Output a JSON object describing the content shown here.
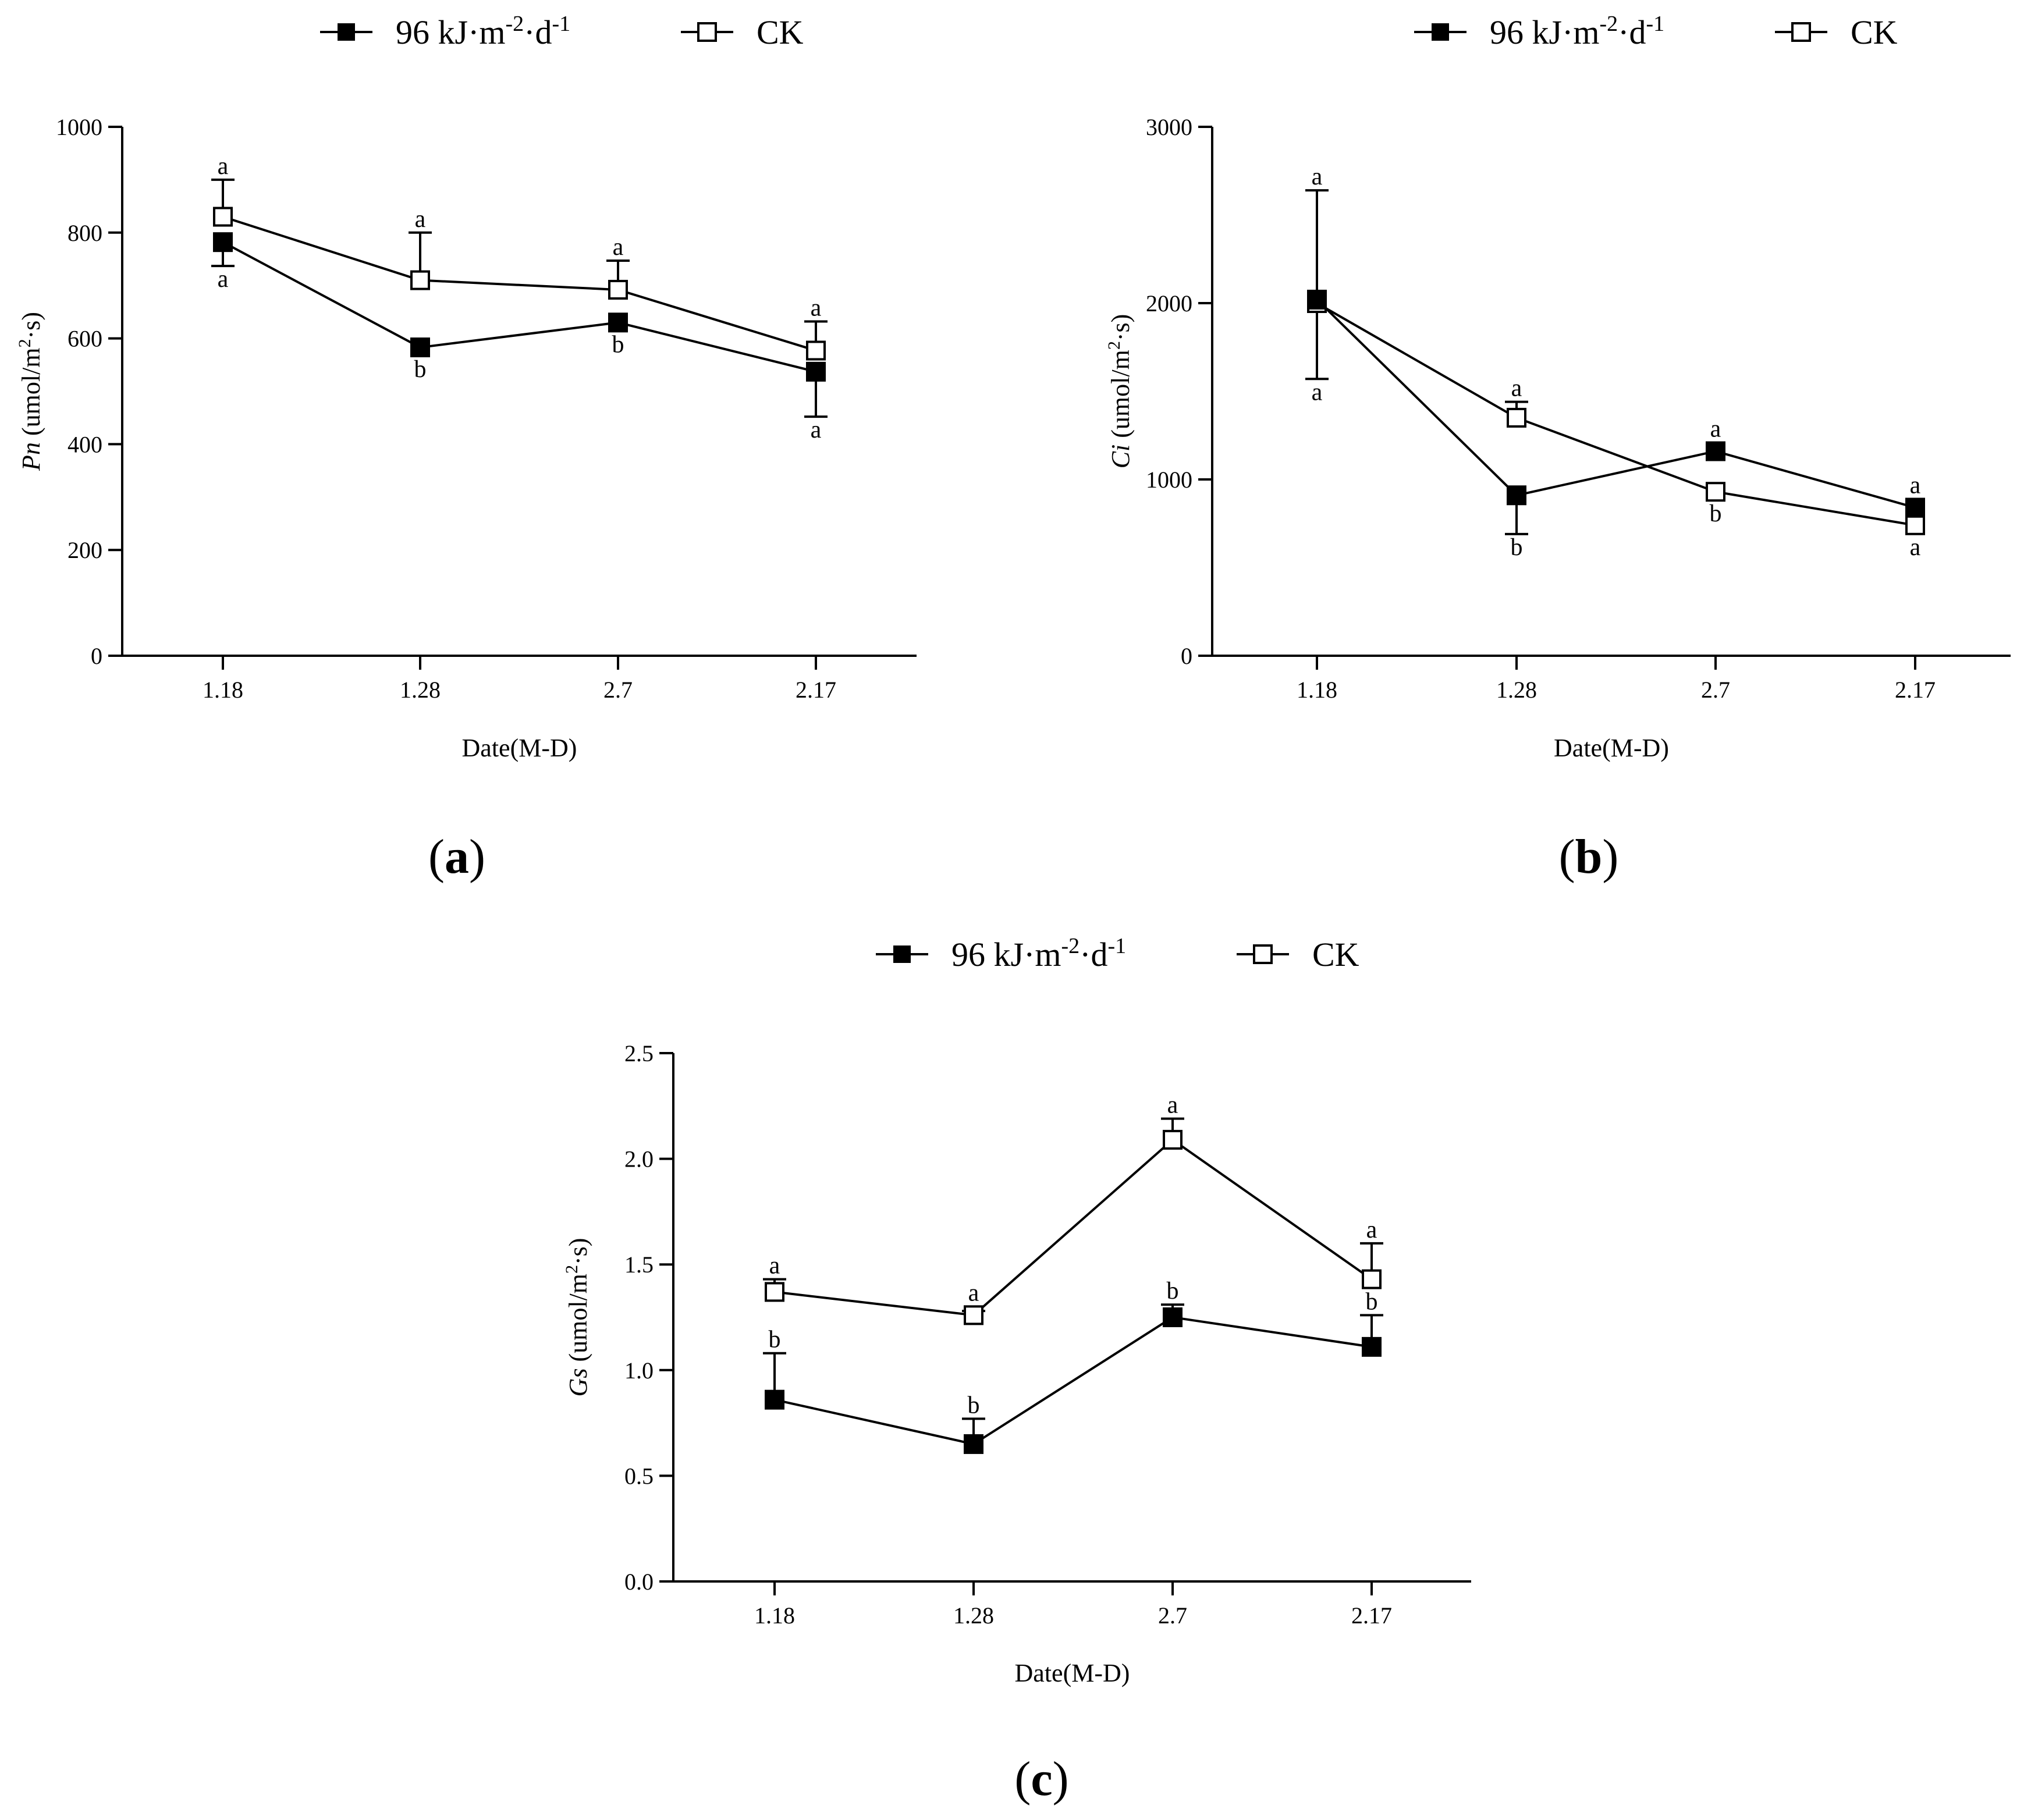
{
  "legend": {
    "treatment": {
      "base": "96 kJ·m",
      "exp1": "-2",
      "mid": "·d",
      "exp2": "-1"
    },
    "control": "CK"
  },
  "chart_data": [
    {
      "type": "line",
      "panel_label": "(a)",
      "panel_letter": "a",
      "categories": [
        "1.18",
        "1.28",
        "2.7",
        "2.17"
      ],
      "xlabel": "Date(M-D)",
      "ylabel": {
        "var": "Pn",
        "unit_open": " (umol/m",
        "unit_exp": "2",
        "unit_close": "·s)"
      },
      "ylim": [
        0,
        1000
      ],
      "yticks": [
        0,
        200,
        400,
        600,
        800,
        1000
      ],
      "ytick_labels": [
        "0",
        "200",
        "400",
        "600",
        "800",
        "1000"
      ],
      "series": [
        {
          "name": "96 kJ·m-2·d-1",
          "marker": "filled-square",
          "values": [
            782,
            583,
            630,
            537
          ],
          "errors": [
            45,
            0,
            0,
            85
          ],
          "error_dir": [
            "down",
            "none",
            "none",
            "down"
          ],
          "letters": [
            "a",
            "b",
            "b",
            "a"
          ],
          "letter_pos": [
            "below",
            "below",
            "below",
            "below"
          ]
        },
        {
          "name": "CK",
          "marker": "open-square",
          "values": [
            830,
            710,
            692,
            577
          ],
          "errors": [
            70,
            90,
            55,
            55
          ],
          "error_dir": [
            "up",
            "up",
            "up",
            "up"
          ],
          "letters": [
            "a",
            "a",
            "a",
            "a"
          ],
          "letter_pos": [
            "above",
            "above",
            "above",
            "above"
          ]
        }
      ]
    },
    {
      "type": "line",
      "panel_label": "(b)",
      "panel_letter": "b",
      "categories": [
        "1.18",
        "1.28",
        "2.7",
        "2.17"
      ],
      "xlabel": "Date(M-D)",
      "ylabel": {
        "var": "Ci",
        "unit_open": " (umol/m",
        "unit_exp": "2",
        "unit_close": "·s)"
      },
      "ylim": [
        0,
        3000
      ],
      "yticks": [
        0,
        1000,
        2000,
        3000
      ],
      "ytick_labels": [
        "0",
        "1000",
        "2000",
        "3000"
      ],
      "series": [
        {
          "name": "96 kJ·m-2·d-1",
          "marker": "filled-square",
          "values": [
            2020,
            910,
            1160,
            840
          ],
          "errors": [
            620,
            220,
            0,
            0
          ],
          "error_dir": [
            "up",
            "down",
            "none",
            "none"
          ],
          "letters": [
            "a",
            "b",
            "a",
            "a"
          ],
          "letter_pos": [
            "above",
            "below",
            "above",
            "above"
          ]
        },
        {
          "name": "CK",
          "marker": "open-square",
          "values": [
            2000,
            1350,
            930,
            740
          ],
          "errors": [
            430,
            90,
            0,
            0
          ],
          "error_dir": [
            "down",
            "up",
            "none",
            "none"
          ],
          "letters": [
            "a",
            "a",
            "b",
            "a"
          ],
          "letter_pos": [
            "below",
            "above",
            "below",
            "below"
          ]
        }
      ]
    },
    {
      "type": "line",
      "panel_label": "(c)",
      "panel_letter": "c",
      "categories": [
        "1.18",
        "1.28",
        "2.7",
        "2.17"
      ],
      "xlabel": "Date(M-D)",
      "ylabel": {
        "var": "Gs",
        "unit_open": " (umol/m",
        "unit_exp": "2",
        "unit_close": "·s)"
      },
      "ylim": [
        0,
        2.5
      ],
      "yticks": [
        0,
        0.5,
        1.0,
        1.5,
        2.0,
        2.5
      ],
      "ytick_labels": [
        "0.0",
        "0.5",
        "1.0",
        "1.5",
        "2.0",
        "2.5"
      ],
      "series": [
        {
          "name": "96 kJ·m-2·d-1",
          "marker": "filled-square",
          "values": [
            0.86,
            0.65,
            1.25,
            1.11
          ],
          "errors": [
            0.22,
            0.12,
            0.06,
            0.15
          ],
          "error_dir": [
            "up",
            "up",
            "up",
            "up"
          ],
          "letters": [
            "b",
            "b",
            "b",
            "b"
          ],
          "letter_pos": [
            "above",
            "above",
            "above",
            "above"
          ]
        },
        {
          "name": "CK",
          "marker": "open-square",
          "values": [
            1.37,
            1.26,
            2.09,
            1.43
          ],
          "errors": [
            0.06,
            0.02,
            0.1,
            0.17
          ],
          "error_dir": [
            "up",
            "up",
            "up",
            "up"
          ],
          "letters": [
            "a",
            "a",
            "a",
            "a"
          ],
          "letter_pos": [
            "above",
            "above",
            "above",
            "above"
          ]
        }
      ]
    }
  ]
}
